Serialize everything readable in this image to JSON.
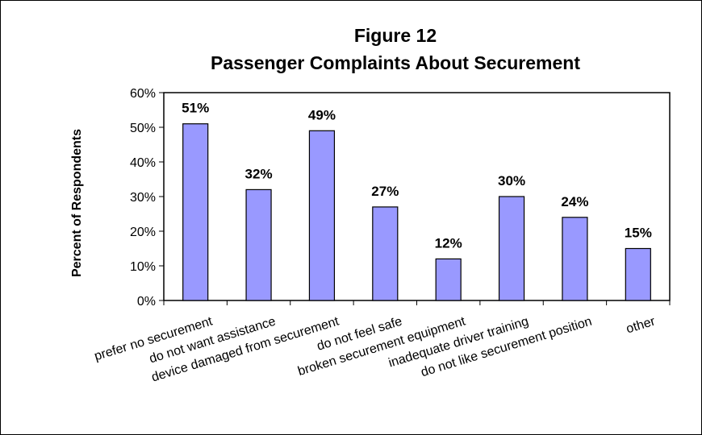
{
  "chart_data": {
    "type": "bar",
    "title": "Figure 12",
    "subtitle": "Passenger Complaints About Securement",
    "xlabel": "",
    "ylabel": "Percent of Respondents",
    "categories": [
      "prefer no securement",
      "do not want assistance",
      "device damaged from securement",
      "do not feel safe",
      "broken securement equipment",
      "inadequate driver training",
      "do not like securement position",
      "other"
    ],
    "values": [
      51,
      32,
      49,
      27,
      12,
      30,
      24,
      15
    ],
    "data_labels": [
      "51%",
      "32%",
      "49%",
      "27%",
      "12%",
      "30%",
      "24%",
      "15%"
    ],
    "ylim": [
      0,
      60
    ],
    "yticks": [
      0,
      10,
      20,
      30,
      40,
      50,
      60
    ],
    "ytick_labels": [
      "0%",
      "10%",
      "20%",
      "30%",
      "40%",
      "50%",
      "60%"
    ],
    "grid": false,
    "legend": "none",
    "colors": {
      "bar": "#9999ff",
      "bar_border": "#000000"
    }
  }
}
